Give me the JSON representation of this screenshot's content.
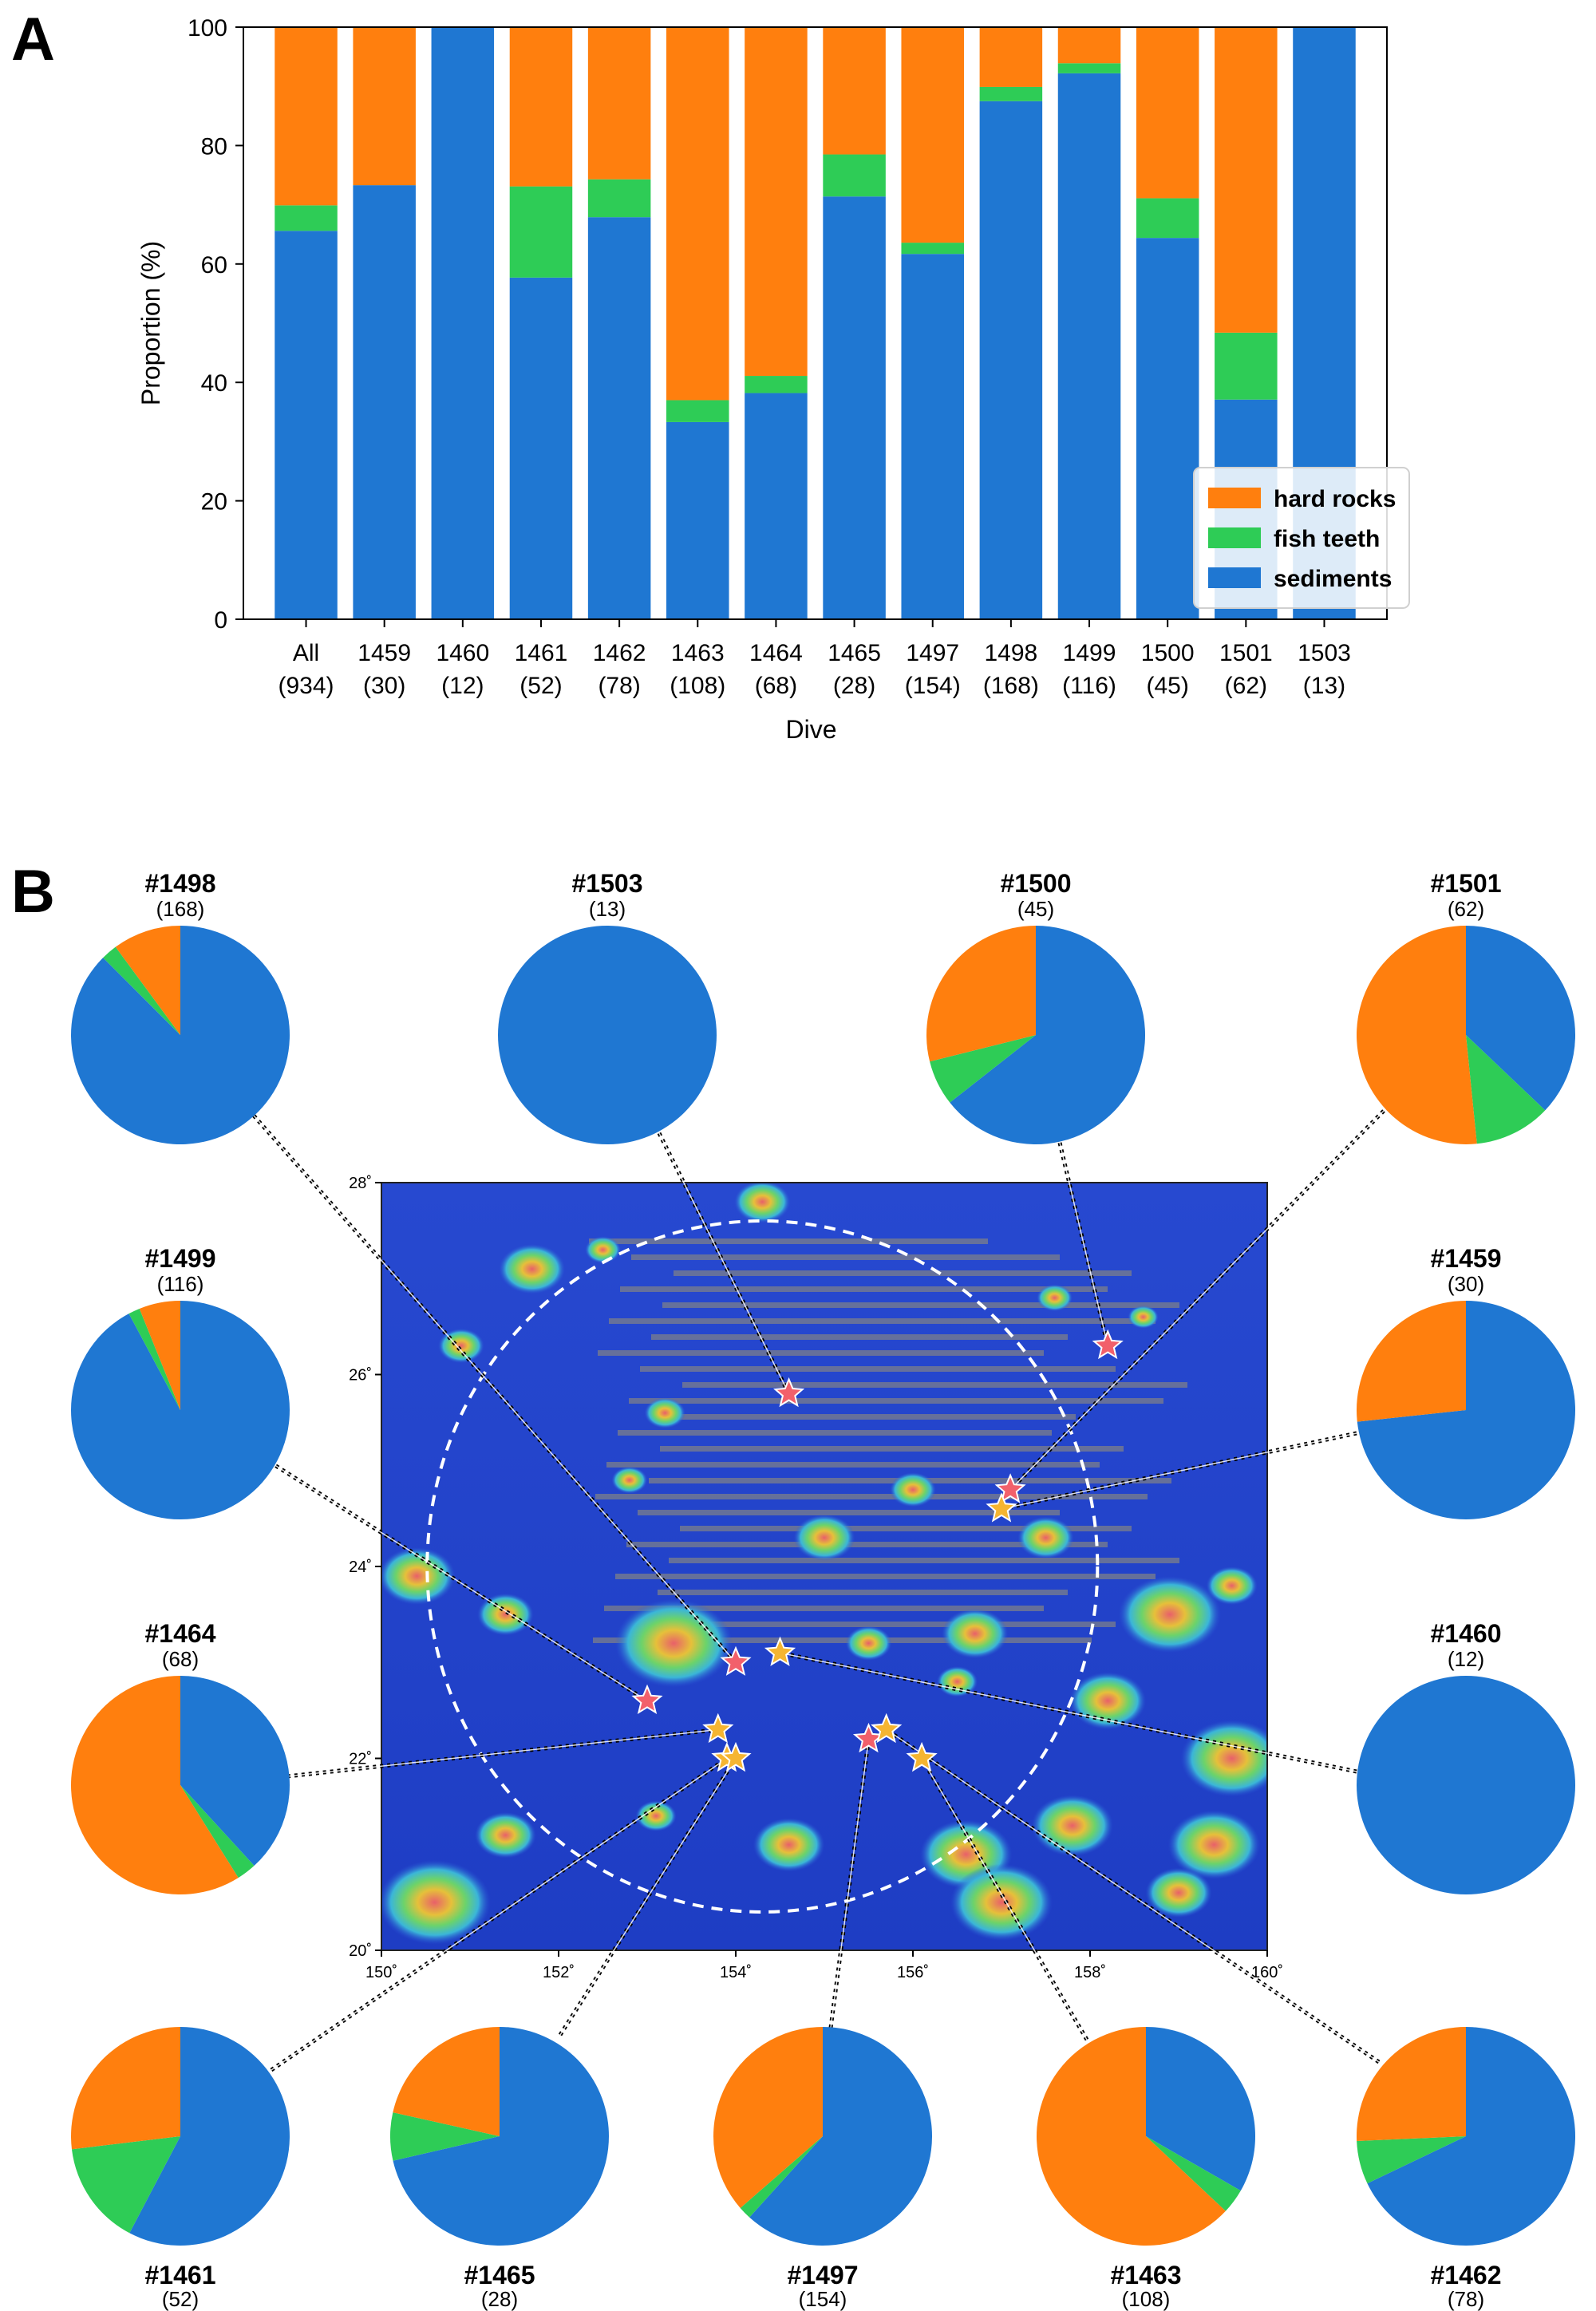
{
  "panel_labels": {
    "a": "A",
    "b": "B"
  },
  "colors": {
    "hard_rocks": "#FF7F0E",
    "fish_teeth": "#2ECC56",
    "sediments": "#1F77D2"
  },
  "chart_data": [
    {
      "type": "bar",
      "stacked": true,
      "xlabel": "Dive",
      "ylabel": "Proportion (%)",
      "ylim": [
        0,
        100
      ],
      "yticks": [
        0,
        20,
        40,
        60,
        80,
        100
      ],
      "legend_position": "bottom-right",
      "categories": [
        {
          "name": "All",
          "n": "(934)"
        },
        {
          "name": "1459",
          "n": "(30)"
        },
        {
          "name": "1460",
          "n": "(12)"
        },
        {
          "name": "1461",
          "n": "(52)"
        },
        {
          "name": "1462",
          "n": "(78)"
        },
        {
          "name": "1463",
          "n": "(108)"
        },
        {
          "name": "1464",
          "n": "(68)"
        },
        {
          "name": "1465",
          "n": "(28)"
        },
        {
          "name": "1497",
          "n": "(154)"
        },
        {
          "name": "1498",
          "n": "(168)"
        },
        {
          "name": "1499",
          "n": "(116)"
        },
        {
          "name": "1500",
          "n": "(45)"
        },
        {
          "name": "1501",
          "n": "(62)"
        },
        {
          "name": "1503",
          "n": "(13)"
        }
      ],
      "series": [
        {
          "name": "sediments",
          "values": [
            65.6,
            73.3,
            100,
            57.7,
            67.9,
            33.3,
            38.2,
            71.4,
            61.7,
            87.5,
            92.2,
            64.4,
            37.1,
            100
          ]
        },
        {
          "name": "fish teeth",
          "values": [
            4.3,
            0,
            0,
            15.4,
            6.4,
            3.7,
            2.9,
            7.1,
            1.9,
            2.4,
            1.7,
            6.7,
            11.3,
            0
          ]
        },
        {
          "name": "hard rocks",
          "values": [
            30.1,
            26.7,
            0,
            26.9,
            25.7,
            63.0,
            58.9,
            21.5,
            36.4,
            10.1,
            6.1,
            28.9,
            51.6,
            0
          ]
        }
      ],
      "legend": [
        "hard rocks",
        "fish teeth",
        "sediments"
      ]
    },
    {
      "type": "pie",
      "slice_order": [
        "sediments",
        "fish teeth",
        "hard rocks"
      ],
      "start": "12 o'clock, clockwise",
      "pies": [
        {
          "id": "#1498",
          "n": "(168)",
          "values": [
            87.5,
            2.4,
            10.1
          ]
        },
        {
          "id": "#1503",
          "n": "(13)",
          "values": [
            100,
            0,
            0
          ]
        },
        {
          "id": "#1500",
          "n": "(45)",
          "values": [
            64.4,
            6.7,
            28.9
          ]
        },
        {
          "id": "#1501",
          "n": "(62)",
          "values": [
            37.1,
            11.3,
            51.6
          ]
        },
        {
          "id": "#1499",
          "n": "(116)",
          "values": [
            92.2,
            1.7,
            6.1
          ]
        },
        {
          "id": "#1459",
          "n": "(30)",
          "values": [
            73.3,
            0,
            26.7
          ]
        },
        {
          "id": "#1464",
          "n": "(68)",
          "values": [
            38.2,
            2.9,
            58.9
          ]
        },
        {
          "id": "#1460",
          "n": "(12)",
          "values": [
            100,
            0,
            0
          ]
        },
        {
          "id": "#1461",
          "n": "(52)",
          "values": [
            57.7,
            15.4,
            26.9
          ]
        },
        {
          "id": "#1465",
          "n": "(28)",
          "values": [
            71.4,
            7.1,
            21.5
          ]
        },
        {
          "id": "#1497",
          "n": "(154)",
          "values": [
            61.7,
            1.9,
            36.4
          ]
        },
        {
          "id": "#1463",
          "n": "(108)",
          "values": [
            33.3,
            3.7,
            63.0
          ]
        },
        {
          "id": "#1462",
          "n": "(78)",
          "values": [
            67.9,
            6.4,
            25.7
          ]
        }
      ]
    },
    {
      "type": "map",
      "lon_range": [
        150,
        160
      ],
      "lat_range": [
        20,
        28
      ],
      "lon_ticks": [
        "150˚",
        "152˚",
        "154˚",
        "156˚",
        "158˚",
        "160˚"
      ],
      "lat_ticks": [
        "20˚",
        "22˚",
        "24˚",
        "26˚",
        "28˚"
      ],
      "sites": [
        {
          "dive": "#1498",
          "lon": 154.0,
          "lat": 23.0,
          "marker": "red"
        },
        {
          "dive": "#1503",
          "lon": 154.6,
          "lat": 25.8,
          "marker": "red"
        },
        {
          "dive": "#1500",
          "lon": 158.2,
          "lat": 26.3,
          "marker": "red"
        },
        {
          "dive": "#1501",
          "lon": 157.1,
          "lat": 24.8,
          "marker": "red"
        },
        {
          "dive": "#1499",
          "lon": 153.0,
          "lat": 22.6,
          "marker": "red"
        },
        {
          "dive": "#1459",
          "lon": 157.0,
          "lat": 24.6,
          "marker": "orange"
        },
        {
          "dive": "#1464",
          "lon": 153.8,
          "lat": 22.3,
          "marker": "orange"
        },
        {
          "dive": "#1460",
          "lon": 154.5,
          "lat": 23.1,
          "marker": "orange"
        },
        {
          "dive": "#1461",
          "lon": 153.9,
          "lat": 22.0,
          "marker": "orange"
        },
        {
          "dive": "#1465",
          "lon": 154.0,
          "lat": 22.0,
          "marker": "orange"
        },
        {
          "dive": "#1497",
          "lon": 155.5,
          "lat": 22.2,
          "marker": "red"
        },
        {
          "dive": "#1463",
          "lon": 156.1,
          "lat": 22.0,
          "marker": "orange"
        },
        {
          "dive": "#1462",
          "lon": 155.7,
          "lat": 22.3,
          "marker": "orange"
        }
      ]
    }
  ]
}
